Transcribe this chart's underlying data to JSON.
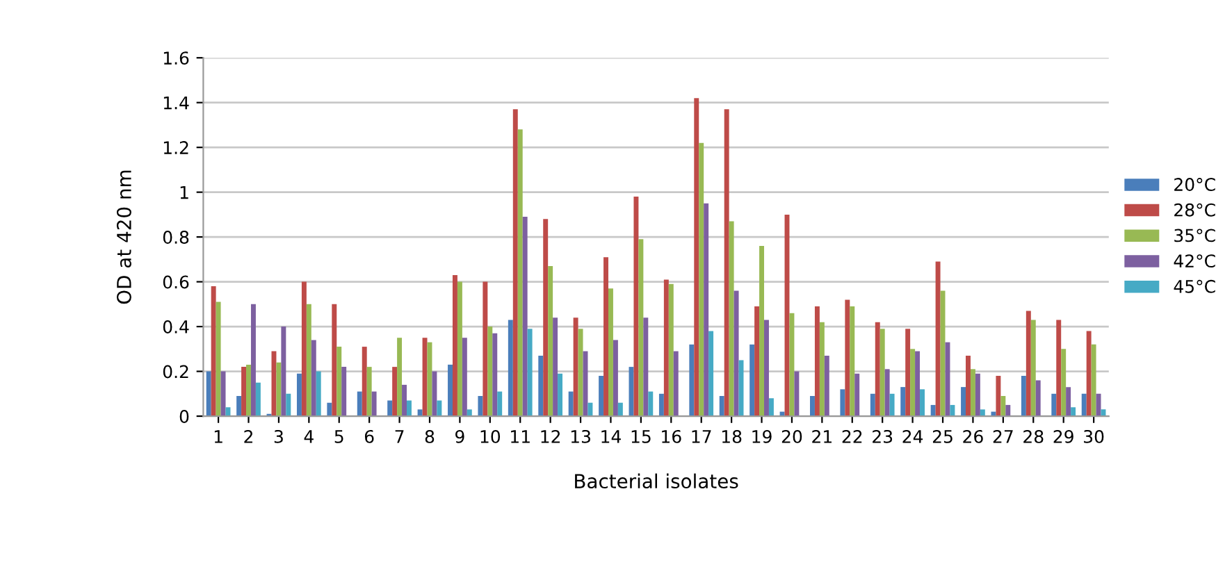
{
  "chart_data": {
    "type": "bar",
    "xlabel": "Bacterial isolates",
    "ylabel": "OD at 420 nm",
    "categories": [
      "1",
      "2",
      "3",
      "4",
      "5",
      "6",
      "7",
      "8",
      "9",
      "10",
      "11",
      "12",
      "13",
      "14",
      "15",
      "16",
      "17",
      "18",
      "19",
      "20",
      "21",
      "22",
      "23",
      "24",
      "25",
      "26",
      "27",
      "28",
      "29",
      "30"
    ],
    "series": [
      {
        "name": "20°C",
        "color": "#4a7ebb",
        "values": [
          0.2,
          0.09,
          0.01,
          0.19,
          0.06,
          0.11,
          0.07,
          0.03,
          0.23,
          0.09,
          0.43,
          0.27,
          0.11,
          0.18,
          0.22,
          0.1,
          0.32,
          0.09,
          0.32,
          0.02,
          0.09,
          0.12,
          0.1,
          0.13,
          0.05,
          0.13,
          0.02,
          0.18,
          0.1,
          0.1
        ]
      },
      {
        "name": "28°C",
        "color": "#be4b48",
        "values": [
          0.58,
          0.22,
          0.29,
          0.6,
          0.5,
          0.31,
          0.22,
          0.35,
          0.63,
          0.6,
          1.37,
          0.88,
          0.44,
          0.71,
          0.98,
          0.61,
          1.42,
          1.37,
          0.49,
          0.9,
          0.49,
          0.52,
          0.42,
          0.39,
          0.69,
          0.27,
          0.18,
          0.47,
          0.43,
          0.38
        ]
      },
      {
        "name": "35°C",
        "color": "#98b954",
        "values": [
          0.51,
          0.23,
          0.24,
          0.5,
          0.31,
          0.22,
          0.35,
          0.33,
          0.6,
          0.4,
          1.28,
          0.67,
          0.39,
          0.57,
          0.79,
          0.59,
          1.22,
          0.87,
          0.76,
          0.46,
          0.42,
          0.49,
          0.39,
          0.3,
          0.56,
          0.21,
          0.09,
          0.43,
          0.3,
          0.32
        ]
      },
      {
        "name": "42°C",
        "color": "#7d60a0",
        "values": [
          0.2,
          0.5,
          0.4,
          0.34,
          0.22,
          0.11,
          0.14,
          0.2,
          0.35,
          0.37,
          0.89,
          0.44,
          0.29,
          0.34,
          0.44,
          0.29,
          0.95,
          0.56,
          0.43,
          0.2,
          0.27,
          0.19,
          0.21,
          0.29,
          0.33,
          0.19,
          0.05,
          0.16,
          0.13,
          0.1
        ]
      },
      {
        "name": "45°C",
        "color": "#46aac5",
        "values": [
          0.04,
          0.15,
          0.1,
          0.2,
          0,
          0,
          0.07,
          0.07,
          0.03,
          0.11,
          0.39,
          0.19,
          0.06,
          0.06,
          0.11,
          0,
          0.38,
          0.25,
          0.08,
          0,
          0,
          0,
          0.1,
          0.12,
          0.05,
          0.03,
          0,
          0,
          0.04,
          0.03
        ]
      }
    ],
    "ylim": [
      0,
      1.6
    ],
    "yticks": [
      0,
      0.2,
      0.4,
      0.6,
      0.8,
      1,
      1.2,
      1.4,
      1.6
    ],
    "grid": "y",
    "legend": "right"
  }
}
